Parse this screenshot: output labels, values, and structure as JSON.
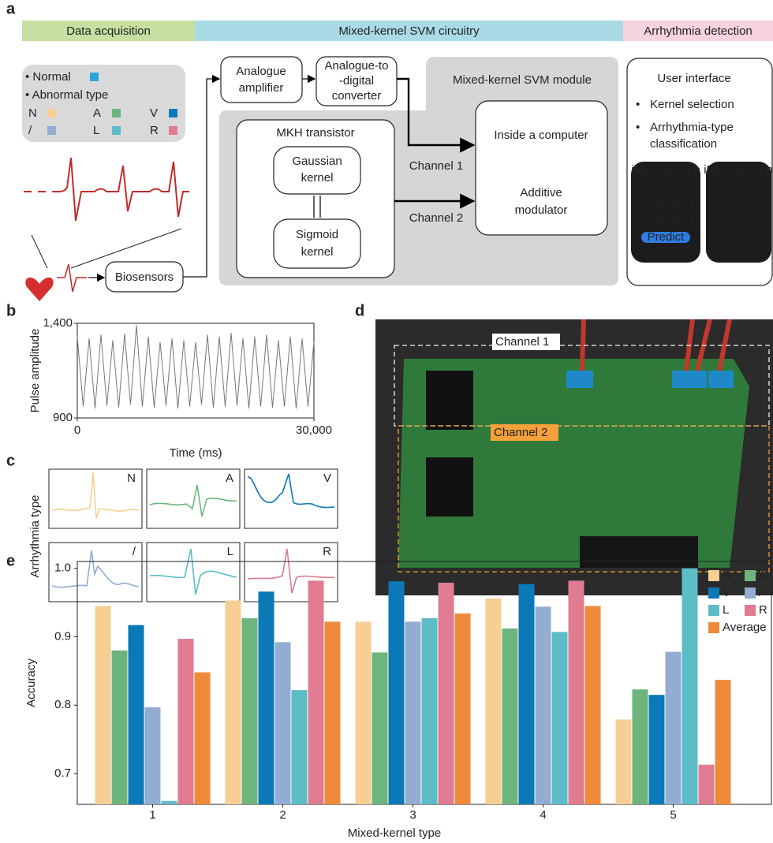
{
  "panel_labels": [
    "a",
    "b",
    "c",
    "d",
    "e"
  ],
  "panel_a": {
    "stages": [
      {
        "text": "Data acquisition",
        "color": "#c6e0a1"
      },
      {
        "text": "Mixed-kernel SVM circuitry",
        "color": "#a9dbe6"
      },
      {
        "text": "Arrhythmia detection",
        "color": "#f7d3df"
      }
    ],
    "legend": {
      "normal": "Normal",
      "normal_color": "#2aa6df",
      "abnormal": "Abnormal type",
      "types": [
        "N",
        "A",
        "V",
        "/",
        "L",
        "R"
      ]
    },
    "amplifier": [
      "Analogue",
      "amplifier"
    ],
    "converter": [
      "Analogue-to",
      "-digital",
      "converter"
    ],
    "svm_module": "Mixed-kernel SVM module",
    "transistor": "MKH transistor",
    "gaussian": [
      "Gaussian",
      "kernel"
    ],
    "sigmoid": [
      "Sigmoid",
      "kernel"
    ],
    "channels": [
      "Channel 1",
      "Channel 2"
    ],
    "computer": "Inside a computer",
    "modulator": [
      "Additive",
      "modulator"
    ],
    "biosensors": "Biosensors",
    "ui_title": "User interface",
    "ui_items": [
      [
        "Kernel selection"
      ],
      [
        "Arrhythmia-type",
        "classification"
      ]
    ],
    "watch": {
      "app": "iMyheart App",
      "channels": [
        "Channel 1",
        "Channel 2"
      ],
      "button": "Predict"
    }
  },
  "panel_c": {
    "ylabel": "Arrhythmia type",
    "types": [
      "N",
      "A",
      "V",
      "/",
      "L",
      "R"
    ]
  },
  "panel_d": {
    "channels": [
      "Channel 1",
      "Channel 2"
    ]
  },
  "chart_data": [
    {
      "type": "line",
      "xlabel": "Time (ms)",
      "ylabel": "Pulse amplitude",
      "x": [
        0,
        750,
        1500,
        2250,
        3000,
        3750,
        4500,
        5250,
        6000,
        6750,
        7500,
        8250,
        9000,
        9750,
        10500,
        11250,
        12000,
        12750,
        13500,
        14250,
        15000,
        15750,
        16500,
        17250,
        18000,
        18750,
        19500,
        20250,
        21000,
        21750,
        22500,
        23250,
        24000,
        24750,
        25500,
        26250,
        27000,
        27750,
        28500,
        29250,
        30000
      ],
      "series": [
        {
          "color": "#777777",
          "values": [
            1330,
            960,
            1320,
            950,
            1340,
            965,
            1310,
            955,
            1345,
            970,
            1390,
            960,
            1330,
            955,
            1300,
            965,
            1320,
            950,
            1310,
            960,
            1300,
            970,
            1340,
            955,
            1330,
            960,
            1350,
            965,
            1320,
            950,
            1330,
            960,
            1340,
            955,
            1310,
            960,
            1330,
            950,
            1320,
            960,
            1300
          ]
        }
      ],
      "xlim": [
        0,
        30000
      ],
      "ylim": [
        900,
        1400
      ],
      "xticks": [
        0,
        {
          "value": 30000,
          "label": "30,000"
        }
      ],
      "yticks": [
        900,
        {
          "value": 1400,
          "label": "1,400"
        }
      ]
    },
    {
      "type": "bar",
      "xlabel": "Mixed-kernel type",
      "ylabel": "Accuracy",
      "categories": [
        "1",
        "2",
        "3",
        "4",
        "5"
      ],
      "series": [
        {
          "name": "N",
          "color": "#f7cf93",
          "values": [
            0.945,
            0.953,
            0.922,
            0.956,
            0.779
          ]
        },
        {
          "name": "A",
          "color": "#6db57c",
          "values": [
            0.88,
            0.927,
            0.877,
            0.912,
            0.823
          ]
        },
        {
          "name": "V",
          "color": "#0b78b8",
          "values": [
            0.917,
            0.966,
            0.981,
            0.977,
            0.815
          ]
        },
        {
          "name": "/",
          "color": "#92acd2",
          "values": [
            0.797,
            0.892,
            0.922,
            0.944,
            0.878
          ]
        },
        {
          "name": "L",
          "color": "#5cbcc7",
          "values": [
            0.66,
            0.822,
            0.927,
            0.907,
            1.0
          ]
        },
        {
          "name": "R",
          "color": "#e07b91",
          "values": [
            0.897,
            0.982,
            0.979,
            0.982,
            0.713
          ]
        },
        {
          "name": "Average",
          "color": "#ef8a3a",
          "values": [
            0.848,
            0.922,
            0.934,
            0.945,
            0.837
          ]
        }
      ],
      "ylim": [
        0.655,
        1.01
      ],
      "yticks": [
        {
          "value": 1.0,
          "label": "1.0"
        },
        0.9,
        0.8,
        0.7
      ],
      "legend": "upper right"
    }
  ]
}
